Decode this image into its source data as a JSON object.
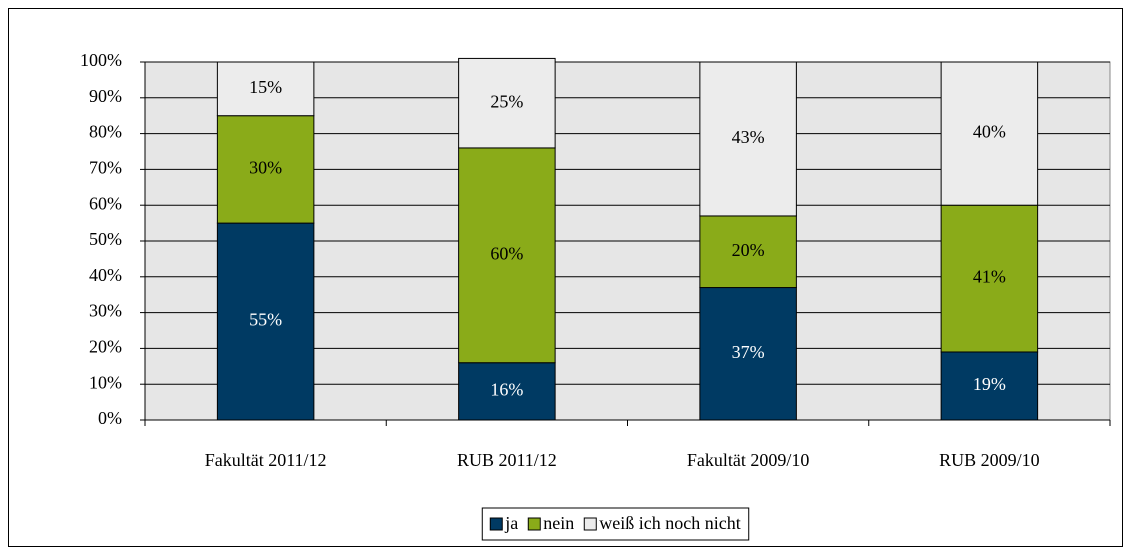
{
  "chart_data": {
    "type": "stacked_bar",
    "categories": [
      "Fakultät 2011/12",
      "RUB 2011/12",
      "Fakultät 2009/10",
      "RUB 2009/10"
    ],
    "series": [
      {
        "name": "ja",
        "color": "#003a63",
        "values": [
          55,
          16,
          37,
          19
        ],
        "value_labels": [
          "55%",
          "16%",
          "37%",
          "19%"
        ]
      },
      {
        "name": "nein",
        "color": "#8aab19",
        "values": [
          30,
          60,
          20,
          41
        ],
        "value_labels": [
          "30%",
          "60%",
          "20%",
          "41%"
        ]
      },
      {
        "name": "weiß ich noch nicht",
        "color": "#ececec",
        "values": [
          15,
          25,
          43,
          40
        ],
        "value_labels": [
          "15%",
          "25%",
          "43%",
          "40%"
        ]
      }
    ],
    "ylim": [
      0,
      100
    ],
    "yticks": [
      {
        "value": 0,
        "label": "0%"
      },
      {
        "value": 10,
        "label": "10%"
      },
      {
        "value": 20,
        "label": "20%"
      },
      {
        "value": 30,
        "label": "30%"
      },
      {
        "value": 40,
        "label": "40%"
      },
      {
        "value": 50,
        "label": "50%"
      },
      {
        "value": 60,
        "label": "60%"
      },
      {
        "value": 70,
        "label": "70%"
      },
      {
        "value": 80,
        "label": "80%"
      },
      {
        "value": 90,
        "label": "90%"
      },
      {
        "value": 100,
        "label": "100%"
      }
    ],
    "grid": true,
    "legend": "bottom"
  }
}
